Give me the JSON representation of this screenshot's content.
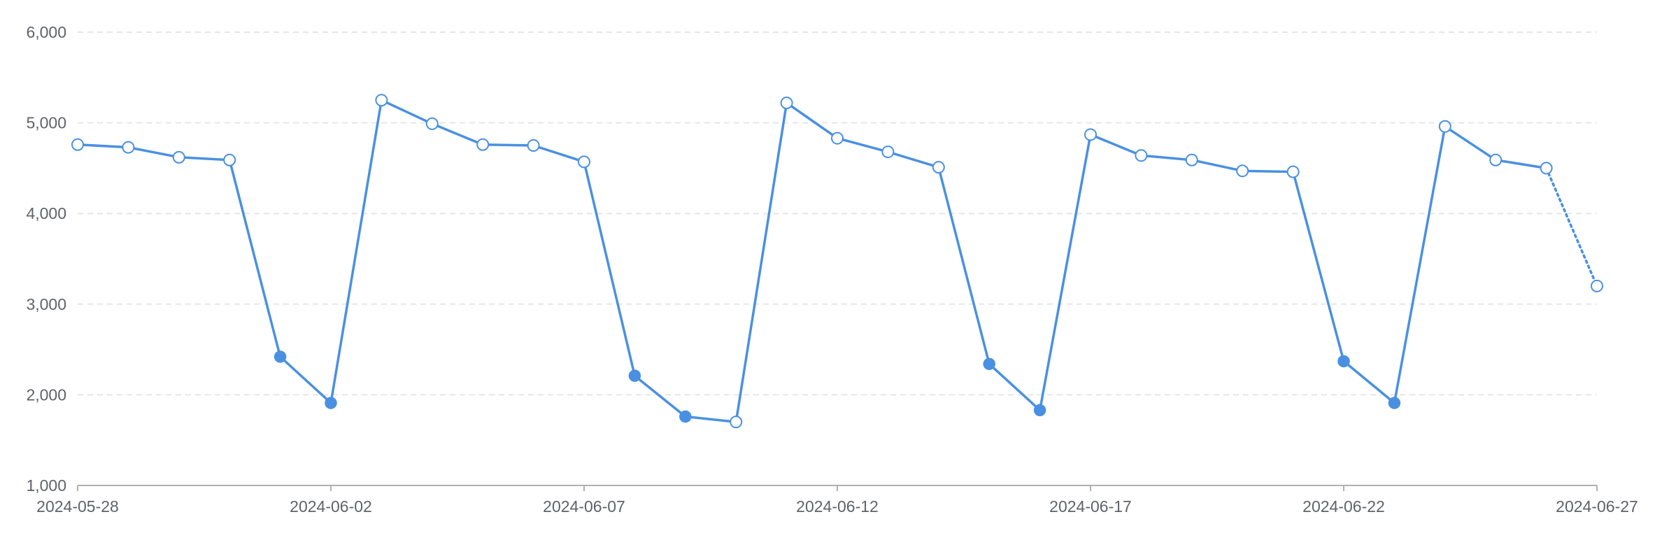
{
  "colors": {
    "series": "#4a90e2",
    "grid": "#e6e6e6",
    "axis": "#b0b0b0",
    "label": "#5f6368",
    "hollow_fill": "#ffffff"
  },
  "chart_data": {
    "type": "line",
    "title": "",
    "xlabel": "",
    "ylabel": "",
    "ylim": [
      1000,
      6000
    ],
    "y_ticks": [
      "1,000",
      "2,000",
      "3,000",
      "4,000",
      "5,000",
      "6,000"
    ],
    "y_tick_values": [
      1000,
      2000,
      3000,
      4000,
      5000,
      6000
    ],
    "x_tick_labels": [
      "2024-05-28",
      "2024-06-02",
      "2024-06-07",
      "2024-06-12",
      "2024-06-17",
      "2024-06-22",
      "2024-06-27"
    ],
    "grid": true,
    "series": [
      {
        "x": [
          "2024-05-28",
          "2024-05-29",
          "2024-05-30",
          "2024-05-31",
          "2024-06-01",
          "2024-06-02",
          "2024-06-03",
          "2024-06-04",
          "2024-06-05",
          "2024-06-06",
          "2024-06-07",
          "2024-06-08",
          "2024-06-09",
          "2024-06-10",
          "2024-06-11",
          "2024-06-12",
          "2024-06-13",
          "2024-06-14",
          "2024-06-15",
          "2024-06-16",
          "2024-06-17",
          "2024-06-18",
          "2024-06-19",
          "2024-06-20",
          "2024-06-21",
          "2024-06-22",
          "2024-06-23",
          "2024-06-24",
          "2024-06-25",
          "2024-06-26",
          "2024-06-27"
        ],
        "values": [
          4760,
          4730,
          4620,
          4590,
          2420,
          1910,
          5250,
          4990,
          4760,
          4750,
          4570,
          2210,
          1760,
          1700,
          5220,
          4830,
          4680,
          4510,
          2340,
          1830,
          4870,
          4640,
          4590,
          4470,
          4460,
          2370,
          1910,
          4960,
          4590,
          4500,
          3200
        ],
        "filled_markers": [
          false,
          false,
          false,
          false,
          true,
          true,
          false,
          false,
          false,
          false,
          false,
          true,
          true,
          false,
          false,
          false,
          false,
          false,
          true,
          true,
          false,
          false,
          false,
          false,
          false,
          true,
          true,
          false,
          false,
          false,
          false
        ],
        "forecast_from_index": 29
      }
    ]
  }
}
